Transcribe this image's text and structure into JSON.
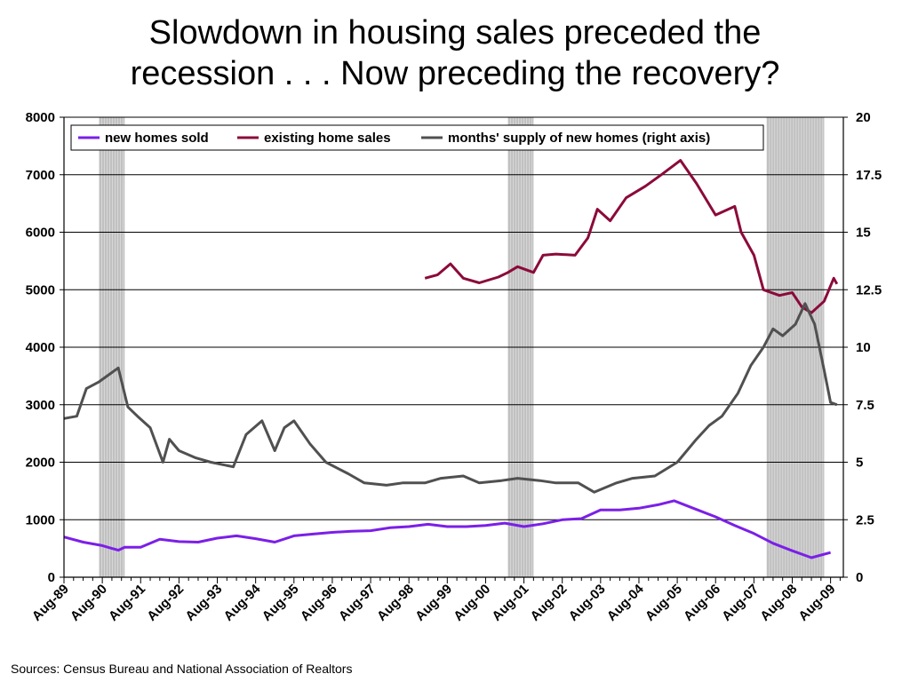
{
  "title_line1": "Slowdown in housing sales preceded the",
  "title_line2": "recession . . . Now preceding the recovery?",
  "source": "Sources: Census Bureau and National Association of Realtors",
  "colors": {
    "new_homes": "#7b1fe8",
    "existing": "#8b0a3a",
    "supply": "#505050",
    "recession": "#c0c0c0"
  },
  "chart_data": {
    "type": "line",
    "title": "Slowdown in housing sales preceded the recession . . . Now preceding the recovery?",
    "x_range": [
      "1989-08",
      "2009-12"
    ],
    "x_tick_labels": [
      "Aug-89",
      "Aug-90",
      "Aug-91",
      "Aug-92",
      "Aug-93",
      "Aug-94",
      "Aug-95",
      "Aug-96",
      "Aug-97",
      "Aug-98",
      "Aug-99",
      "Aug-00",
      "Aug-01",
      "Aug-02",
      "Aug-03",
      "Aug-04",
      "Aug-05",
      "Aug-06",
      "Aug-07",
      "Aug-08",
      "Aug-09"
    ],
    "y_left": {
      "range": [
        0,
        8000
      ],
      "ticks": [
        "0",
        "1000",
        "2000",
        "3000",
        "4000",
        "5000",
        "6000",
        "7000",
        "8000"
      ]
    },
    "y_right": {
      "range": [
        0,
        20
      ],
      "ticks": [
        "0",
        "2.5",
        "5",
        "7.5",
        "10",
        "12.5",
        "15",
        "17.5",
        "20"
      ]
    },
    "grid": "horizontal",
    "legend_position": "top",
    "recessions": [
      {
        "start": "1990-07",
        "end": "1991-03"
      },
      {
        "start": "2001-03",
        "end": "2001-11"
      },
      {
        "start": "2007-12",
        "end": "2009-06"
      }
    ],
    "series": [
      {
        "name": "new homes sold",
        "axis": "left",
        "points": [
          [
            "1989-08",
            700
          ],
          [
            "1990-02",
            610
          ],
          [
            "1990-08",
            550
          ],
          [
            "1991-01",
            470
          ],
          [
            "1991-03",
            520
          ],
          [
            "1991-08",
            520
          ],
          [
            "1992-02",
            660
          ],
          [
            "1992-08",
            620
          ],
          [
            "1993-02",
            610
          ],
          [
            "1993-08",
            680
          ],
          [
            "1994-02",
            720
          ],
          [
            "1994-08",
            670
          ],
          [
            "1995-02",
            610
          ],
          [
            "1995-08",
            720
          ],
          [
            "1996-02",
            750
          ],
          [
            "1996-08",
            780
          ],
          [
            "1997-02",
            800
          ],
          [
            "1997-08",
            810
          ],
          [
            "1998-02",
            860
          ],
          [
            "1998-08",
            880
          ],
          [
            "1999-02",
            920
          ],
          [
            "1999-08",
            880
          ],
          [
            "2000-02",
            880
          ],
          [
            "2000-08",
            900
          ],
          [
            "2001-02",
            940
          ],
          [
            "2001-08",
            880
          ],
          [
            "2002-02",
            930
          ],
          [
            "2002-08",
            1000
          ],
          [
            "2003-02",
            1020
          ],
          [
            "2003-08",
            1170
          ],
          [
            "2004-02",
            1170
          ],
          [
            "2004-08",
            1200
          ],
          [
            "2005-02",
            1260
          ],
          [
            "2005-07",
            1330
          ],
          [
            "2006-01",
            1200
          ],
          [
            "2006-08",
            1050
          ],
          [
            "2007-02",
            900
          ],
          [
            "2007-08",
            760
          ],
          [
            "2008-02",
            590
          ],
          [
            "2008-08",
            460
          ],
          [
            "2009-02",
            340
          ],
          [
            "2009-08",
            430
          ]
        ]
      },
      {
        "name": "existing home sales",
        "axis": "left",
        "points": [
          [
            "1999-01",
            5200
          ],
          [
            "1999-05",
            5260
          ],
          [
            "1999-09",
            5450
          ],
          [
            "2000-01",
            5200
          ],
          [
            "2000-06",
            5120
          ],
          [
            "2000-12",
            5220
          ],
          [
            "2001-03",
            5300
          ],
          [
            "2001-06",
            5400
          ],
          [
            "2001-11",
            5300
          ],
          [
            "2002-02",
            5600
          ],
          [
            "2002-06",
            5620
          ],
          [
            "2002-12",
            5600
          ],
          [
            "2003-04",
            5900
          ],
          [
            "2003-07",
            6400
          ],
          [
            "2003-11",
            6200
          ],
          [
            "2004-04",
            6600
          ],
          [
            "2004-10",
            6800
          ],
          [
            "2005-03",
            7000
          ],
          [
            "2005-09",
            7250
          ],
          [
            "2006-02",
            6850
          ],
          [
            "2006-08",
            6300
          ],
          [
            "2007-02",
            6450
          ],
          [
            "2007-04",
            6000
          ],
          [
            "2007-08",
            5600
          ],
          [
            "2007-11",
            5000
          ],
          [
            "2008-04",
            4900
          ],
          [
            "2008-08",
            4950
          ],
          [
            "2008-11",
            4700
          ],
          [
            "2009-02",
            4600
          ],
          [
            "2009-06",
            4800
          ],
          [
            "2009-09",
            5200
          ],
          [
            "2009-10",
            5100
          ]
        ]
      },
      {
        "name": "months' supply of new homes (right axis)",
        "axis": "right",
        "points": [
          [
            "1989-08",
            6.9
          ],
          [
            "1989-12",
            7.0
          ],
          [
            "1990-03",
            8.2
          ],
          [
            "1990-07",
            8.5
          ],
          [
            "1991-01",
            9.1
          ],
          [
            "1991-04",
            7.4
          ],
          [
            "1991-07",
            7.0
          ],
          [
            "1991-11",
            6.5
          ],
          [
            "1992-03",
            5.0
          ],
          [
            "1992-05",
            6.0
          ],
          [
            "1992-08",
            5.5
          ],
          [
            "1993-01",
            5.2
          ],
          [
            "1993-06",
            5.0
          ],
          [
            "1994-01",
            4.8
          ],
          [
            "1994-05",
            6.2
          ],
          [
            "1994-10",
            6.8
          ],
          [
            "1995-02",
            5.5
          ],
          [
            "1995-05",
            6.5
          ],
          [
            "1995-08",
            6.8
          ],
          [
            "1996-01",
            5.8
          ],
          [
            "1996-06",
            5.0
          ],
          [
            "1997-01",
            4.5
          ],
          [
            "1997-06",
            4.1
          ],
          [
            "1998-01",
            4.0
          ],
          [
            "1998-06",
            4.1
          ],
          [
            "1999-01",
            4.1
          ],
          [
            "1999-06",
            4.3
          ],
          [
            "2000-01",
            4.4
          ],
          [
            "2000-06",
            4.1
          ],
          [
            "2001-01",
            4.2
          ],
          [
            "2001-06",
            4.3
          ],
          [
            "2002-01",
            4.2
          ],
          [
            "2002-06",
            4.1
          ],
          [
            "2003-01",
            4.1
          ],
          [
            "2003-06",
            3.7
          ],
          [
            "2004-01",
            4.1
          ],
          [
            "2004-06",
            4.3
          ],
          [
            "2005-01",
            4.4
          ],
          [
            "2005-08",
            5.0
          ],
          [
            "2006-02",
            6.0
          ],
          [
            "2006-06",
            6.6
          ],
          [
            "2006-10",
            7.0
          ],
          [
            "2007-03",
            8.0
          ],
          [
            "2007-07",
            9.2
          ],
          [
            "2007-11",
            10.0
          ],
          [
            "2008-02",
            10.8
          ],
          [
            "2008-05",
            10.5
          ],
          [
            "2008-09",
            11.0
          ],
          [
            "2008-12",
            11.9
          ],
          [
            "2009-03",
            11.0
          ],
          [
            "2009-06",
            9.0
          ],
          [
            "2009-08",
            7.6
          ],
          [
            "2009-10",
            7.5
          ]
        ]
      }
    ]
  }
}
